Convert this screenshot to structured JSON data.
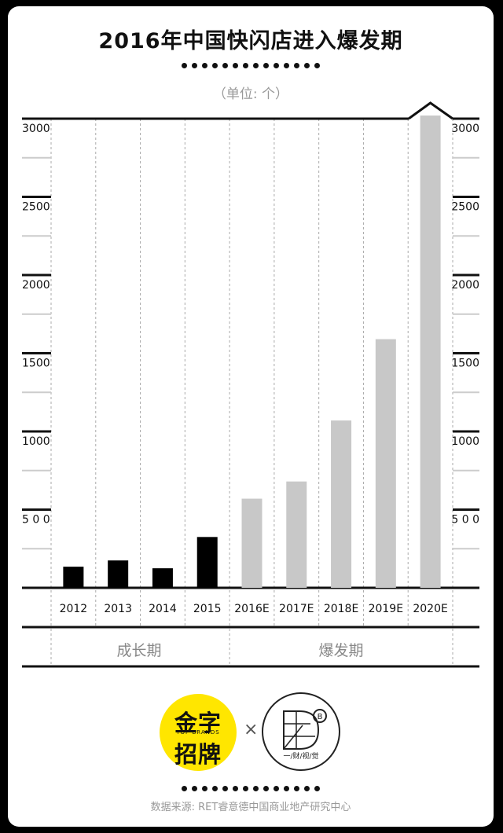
{
  "title": "2016年中国快闪店进入爆发期",
  "unit_label": "（单位: 个）",
  "chart_data": {
    "type": "bar",
    "title": "2016年中国快闪店进入爆发期",
    "ylabel": "（单位: 个）",
    "categories": [
      "2012",
      "2013",
      "2014",
      "2015",
      "2016E",
      "2017E",
      "2018E",
      "2019E",
      "2020E"
    ],
    "values": [
      135,
      175,
      125,
      325,
      570,
      680,
      1070,
      1590,
      3020
    ],
    "actual_color": "#000000",
    "forecast_color": "#c8c8c8",
    "ylim": [
      0,
      3000
    ],
    "yticks": [
      500,
      1000,
      1500,
      2000,
      2500,
      3000
    ],
    "ytick_labels_left": [
      "5 0 0",
      "1000",
      "1500",
      "2000",
      "2500",
      "3000"
    ],
    "ytick_labels_right": [
      "5 0 0",
      "1000",
      "1500",
      "2000",
      "2500",
      "3000"
    ],
    "grid": true,
    "phases": [
      {
        "label": "成长期",
        "categories": [
          "2012",
          "2013",
          "2014",
          "2015"
        ]
      },
      {
        "label": "爆发期",
        "categories": [
          "2016E",
          "2017E",
          "2018E",
          "2019E",
          "2020E"
        ]
      }
    ]
  },
  "logos": {
    "left_line1": "金字",
    "left_small": "TOP BRANDS",
    "left_line2": "招牌",
    "times": "×",
    "right_caption": "一/财/视/觉"
  },
  "source": "数据来源: RET睿意德中国商业地产研究中心"
}
